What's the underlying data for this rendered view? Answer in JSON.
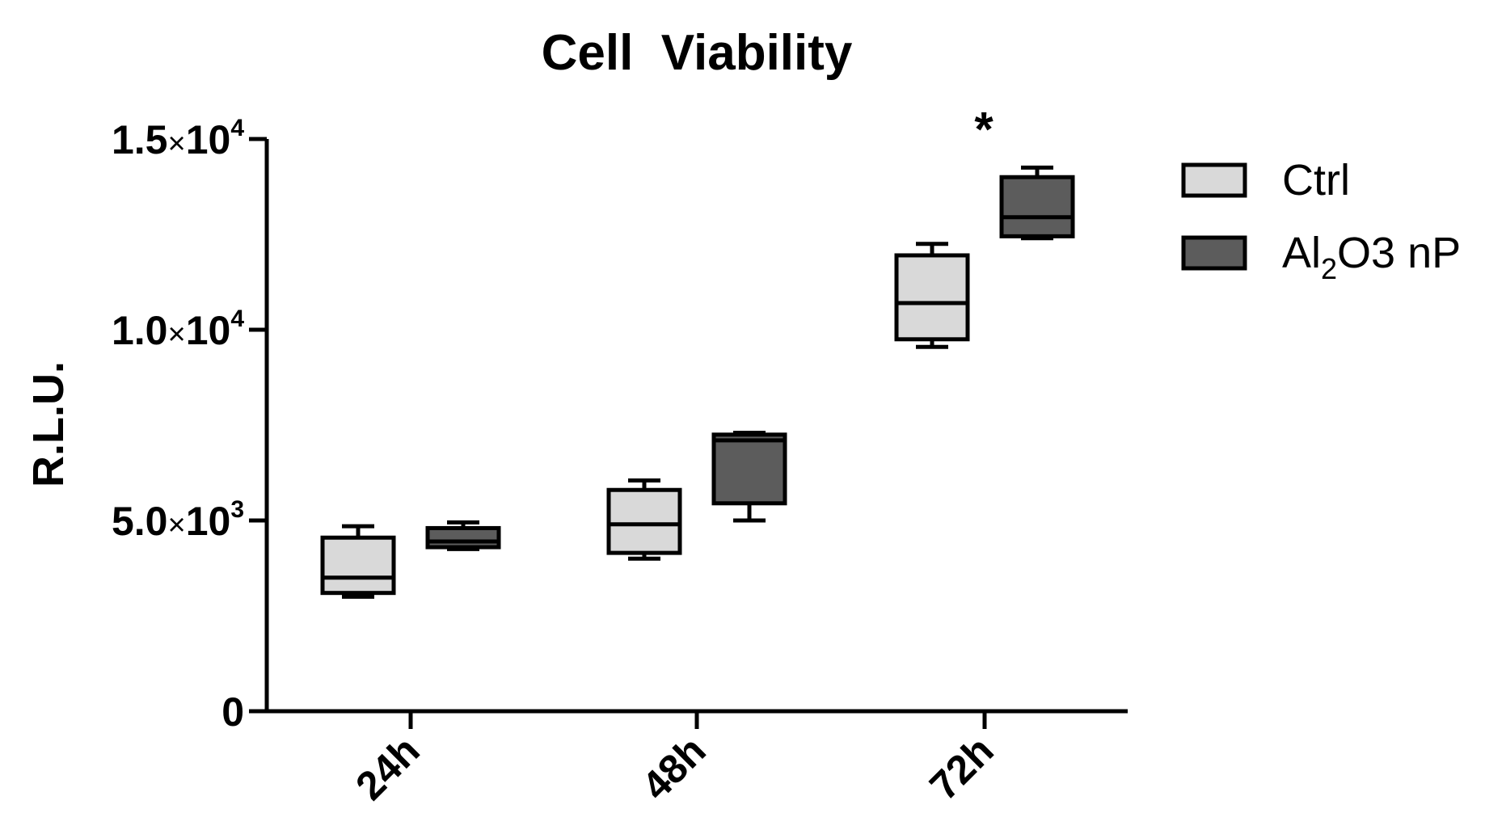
{
  "chart_data": {
    "type": "box",
    "title": "Cell  Viability",
    "xlabel": "",
    "ylabel": "R.L.U.",
    "ylim": [
      0,
      15000
    ],
    "y_ticks": [
      {
        "value": 0,
        "mantissa": "0",
        "exponent": ""
      },
      {
        "value": 5000,
        "mantissa": "5.0",
        "exponent": "3"
      },
      {
        "value": 10000,
        "mantissa": "1.0",
        "exponent": "4"
      },
      {
        "value": 15000,
        "mantissa": "1.5",
        "exponent": "4"
      }
    ],
    "tick_times_symbol": "×",
    "tick_base": "10",
    "categories": [
      "24h",
      "48h",
      "72h"
    ],
    "series": [
      {
        "name": "Ctrl",
        "legend_main": "Ctrl",
        "legend_sub": "",
        "legend_tail": "",
        "color": "#d9d9d9",
        "boxes": [
          {
            "min": 3000,
            "q1": 3100,
            "median": 3500,
            "q3": 4550,
            "max": 4850
          },
          {
            "min": 4000,
            "q1": 4150,
            "median": 4900,
            "q3": 5800,
            "max": 6050
          },
          {
            "min": 9550,
            "q1": 9750,
            "median": 10700,
            "q3": 11950,
            "max": 12250
          }
        ]
      },
      {
        "name": "Al2O3 nP",
        "legend_main": "Al",
        "legend_sub": "2",
        "legend_tail": "O3 nP",
        "color": "#5c5c5c",
        "boxes": [
          {
            "min": 4250,
            "q1": 4300,
            "median": 4450,
            "q3": 4800,
            "max": 4950
          },
          {
            "min": 5000,
            "q1": 5450,
            "median": 7100,
            "q3": 7250,
            "max": 7300
          },
          {
            "min": 12400,
            "q1": 12450,
            "median": 12950,
            "q3": 14000,
            "max": 14250
          }
        ]
      }
    ],
    "annotations": [
      {
        "text": "*",
        "category": "72h",
        "series": "Al2O3 nP",
        "value": 15200
      }
    ],
    "legend_position": "top-right"
  }
}
